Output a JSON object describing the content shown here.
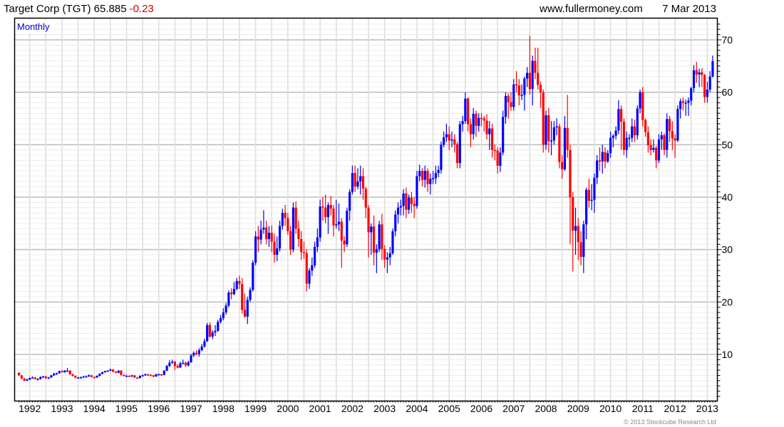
{
  "header": {
    "title": "Target Corp (TGT) 65.885",
    "change": "-0.23",
    "site": "www.fullermoney.com",
    "date": "7 Mar 2013"
  },
  "footer": {
    "copyright": "© 2013 Stockcube Research Ltd"
  },
  "colors": {
    "up": "#0000ff",
    "down": "#ff0000",
    "change": "#cc0000",
    "period": "#0000cc"
  },
  "chart_data": {
    "type": "candlestick",
    "title": "Target Corp (TGT) 65.885 -0.23",
    "interval": "Monthly",
    "start_month": "1991-09",
    "end_month": "2013-03",
    "ylim": [
      1.2,
      74
    ],
    "y_ticks": [
      "10",
      "20",
      "30",
      "40",
      "50",
      "60",
      "70"
    ],
    "x_ticks": [
      "1992",
      "1993",
      "1994",
      "1995",
      "1996",
      "1997",
      "1998",
      "1999",
      "2000",
      "2001",
      "2002",
      "2003",
      "2004",
      "2005",
      "2006",
      "2007",
      "2008",
      "2009",
      "2010",
      "2011",
      "2012",
      "2013"
    ],
    "grid": true,
    "candle_fields": [
      "open",
      "high",
      "low",
      "close"
    ],
    "candles": [
      [
        6.5,
        6.6,
        5.9,
        6.0
      ],
      [
        6.0,
        6.1,
        5.3,
        5.4
      ],
      [
        5.4,
        5.5,
        4.9,
        5.0
      ],
      [
        5.0,
        5.4,
        4.9,
        5.2
      ],
      [
        5.2,
        5.6,
        5.1,
        5.5
      ],
      [
        5.5,
        5.8,
        5.4,
        5.6
      ],
      [
        5.6,
        5.7,
        5.2,
        5.3
      ],
      [
        5.3,
        5.5,
        5.1,
        5.3
      ],
      [
        5.3,
        5.8,
        5.2,
        5.7
      ],
      [
        5.7,
        5.9,
        5.5,
        5.8
      ],
      [
        5.8,
        5.9,
        5.3,
        5.5
      ],
      [
        5.5,
        5.7,
        5.3,
        5.6
      ],
      [
        5.6,
        6.1,
        5.5,
        6.0
      ],
      [
        6.0,
        6.5,
        5.9,
        6.3
      ],
      [
        6.3,
        6.5,
        6.1,
        6.4
      ],
      [
        6.4,
        6.9,
        6.3,
        6.8
      ],
      [
        6.8,
        7.0,
        6.5,
        6.6
      ],
      [
        6.6,
        7.0,
        6.5,
        6.9
      ],
      [
        6.9,
        7.4,
        6.7,
        6.9
      ],
      [
        6.9,
        7.0,
        6.1,
        6.2
      ],
      [
        6.2,
        6.3,
        5.8,
        5.9
      ],
      [
        5.9,
        6.0,
        5.4,
        5.6
      ],
      [
        5.6,
        5.7,
        5.5,
        5.6
      ],
      [
        5.6,
        5.8,
        5.5,
        5.6
      ],
      [
        5.6,
        5.9,
        5.5,
        5.8
      ],
      [
        5.8,
        6.0,
        5.6,
        5.8
      ],
      [
        5.8,
        6.2,
        5.7,
        6.0
      ],
      [
        6.0,
        6.1,
        5.6,
        5.7
      ],
      [
        5.7,
        5.8,
        5.4,
        5.6
      ],
      [
        5.6,
        6.0,
        5.5,
        5.9
      ],
      [
        5.9,
        6.4,
        5.8,
        6.3
      ],
      [
        6.3,
        6.7,
        6.2,
        6.6
      ],
      [
        6.6,
        6.9,
        6.5,
        6.8
      ],
      [
        6.8,
        7.0,
        6.7,
        6.9
      ],
      [
        6.9,
        7.3,
        6.8,
        7.1
      ],
      [
        7.1,
        7.2,
        6.6,
        6.7
      ],
      [
        6.7,
        6.8,
        6.4,
        6.5
      ],
      [
        6.5,
        7.0,
        6.4,
        6.9
      ],
      [
        6.9,
        7.0,
        5.9,
        6.1
      ],
      [
        6.1,
        6.2,
        5.8,
        5.9
      ],
      [
        5.9,
        6.1,
        5.8,
        5.9
      ],
      [
        5.9,
        6.0,
        5.7,
        5.8
      ],
      [
        5.8,
        6.1,
        5.7,
        6.0
      ],
      [
        6.0,
        6.1,
        5.5,
        5.6
      ],
      [
        5.6,
        5.7,
        5.3,
        5.5
      ],
      [
        5.5,
        6.0,
        5.4,
        5.9
      ],
      [
        5.9,
        6.2,
        5.8,
        6.0
      ],
      [
        6.0,
        6.4,
        5.9,
        6.2
      ],
      [
        6.2,
        6.3,
        5.9,
        6.1
      ],
      [
        6.1,
        6.2,
        5.8,
        6.0
      ],
      [
        6.0,
        6.1,
        5.6,
        5.8
      ],
      [
        5.8,
        6.3,
        5.7,
        6.2
      ],
      [
        6.2,
        6.4,
        6.0,
        6.2
      ],
      [
        6.2,
        6.3,
        5.9,
        6.1
      ],
      [
        6.1,
        7.0,
        6.0,
        6.9
      ],
      [
        6.9,
        8.0,
        6.8,
        7.8
      ],
      [
        7.8,
        8.9,
        7.6,
        8.4
      ],
      [
        8.4,
        9.0,
        8.2,
        8.6
      ],
      [
        8.6,
        8.8,
        7.0,
        7.8
      ],
      [
        7.8,
        8.1,
        7.3,
        7.5
      ],
      [
        7.5,
        8.6,
        7.4,
        8.3
      ],
      [
        8.3,
        9.0,
        8.1,
        8.4
      ],
      [
        8.4,
        8.6,
        7.6,
        7.9
      ],
      [
        7.9,
        8.8,
        7.7,
        8.5
      ],
      [
        8.5,
        10.1,
        8.4,
        9.8
      ],
      [
        9.8,
        10.6,
        9.5,
        10.3
      ],
      [
        10.3,
        10.8,
        9.8,
        10.1
      ],
      [
        10.1,
        11.2,
        9.6,
        10.8
      ],
      [
        10.8,
        12.0,
        10.6,
        11.5
      ],
      [
        11.5,
        13.0,
        11.3,
        12.5
      ],
      [
        12.5,
        16.0,
        12.4,
        15.6
      ],
      [
        15.6,
        16.1,
        13.2,
        13.4
      ],
      [
        13.4,
        14.6,
        12.9,
        14.2
      ],
      [
        14.2,
        15.6,
        13.5,
        14.5
      ],
      [
        14.5,
        16.6,
        14.3,
        16.2
      ],
      [
        16.2,
        17.5,
        15.9,
        16.9
      ],
      [
        16.9,
        18.8,
        16.5,
        18.0
      ],
      [
        18.0,
        19.8,
        17.6,
        19.3
      ],
      [
        19.3,
        22.2,
        19.0,
        21.8
      ],
      [
        21.8,
        22.6,
        20.5,
        21.5
      ],
      [
        21.5,
        23.8,
        21.3,
        22.5
      ],
      [
        22.5,
        24.6,
        22.2,
        24.0
      ],
      [
        24.0,
        25.0,
        22.5,
        23.4
      ],
      [
        23.4,
        24.6,
        17.8,
        18.5
      ],
      [
        18.5,
        21.6,
        17.0,
        17.2
      ],
      [
        17.2,
        21.0,
        15.8,
        20.4
      ],
      [
        20.4,
        22.8,
        20.0,
        22.3
      ],
      [
        22.3,
        28.0,
        22.0,
        27.5
      ],
      [
        27.5,
        33.5,
        27.0,
        32.5
      ],
      [
        32.5,
        34.5,
        29.5,
        31.9
      ],
      [
        31.9,
        35.5,
        31.0,
        33.8
      ],
      [
        33.8,
        37.5,
        33.0,
        34.2
      ],
      [
        34.2,
        35.5,
        31.0,
        32.0
      ],
      [
        32.0,
        34.5,
        30.5,
        33.2
      ],
      [
        33.2,
        34.6,
        29.5,
        31.5
      ],
      [
        31.5,
        33.0,
        27.5,
        29.0
      ],
      [
        29.0,
        32.5,
        27.8,
        30.2
      ],
      [
        30.2,
        35.5,
        29.6,
        34.5
      ],
      [
        34.5,
        37.8,
        33.8,
        37.0
      ],
      [
        37.0,
        38.5,
        34.5,
        36.0
      ],
      [
        36.0,
        37.0,
        32.8,
        33.5
      ],
      [
        33.5,
        34.5,
        29.0,
        30.0
      ],
      [
        30.0,
        39.0,
        29.5,
        38.0
      ],
      [
        38.0,
        39.2,
        33.0,
        34.0
      ],
      [
        34.0,
        35.5,
        30.5,
        32.0
      ],
      [
        32.0,
        33.5,
        28.0,
        29.5
      ],
      [
        29.5,
        31.5,
        28.2,
        29.3
      ],
      [
        29.3,
        30.0,
        22.0,
        23.5
      ],
      [
        23.5,
        26.5,
        22.5,
        26.0
      ],
      [
        26.0,
        28.5,
        25.0,
        27.0
      ],
      [
        27.0,
        31.5,
        26.5,
        30.5
      ],
      [
        30.5,
        34.0,
        29.5,
        32.3
      ],
      [
        32.3,
        39.5,
        31.5,
        38.2
      ],
      [
        38.2,
        40.0,
        35.5,
        38.0
      ],
      [
        38.0,
        40.5,
        35.0,
        36.2
      ],
      [
        36.2,
        39.0,
        33.0,
        38.5
      ],
      [
        38.5,
        40.2,
        36.5,
        37.8
      ],
      [
        37.8,
        38.5,
        32.5,
        34.6
      ],
      [
        34.6,
        39.5,
        34.0,
        34.8
      ],
      [
        34.8,
        38.8,
        33.5,
        35.3
      ],
      [
        35.3,
        36.0,
        26.5,
        31.7
      ],
      [
        31.7,
        32.5,
        29.5,
        31.0
      ],
      [
        31.0,
        38.0,
        30.5,
        37.4
      ],
      [
        37.4,
        41.5,
        35.5,
        41.0
      ],
      [
        41.0,
        46.0,
        40.5,
        44.6
      ],
      [
        44.6,
        46.0,
        41.0,
        42.0
      ],
      [
        42.0,
        45.5,
        41.5,
        43.0
      ],
      [
        43.0,
        46.0,
        40.5,
        44.0
      ],
      [
        44.0,
        45.5,
        39.5,
        41.6
      ],
      [
        41.6,
        42.0,
        36.0,
        38.0
      ],
      [
        38.0,
        38.5,
        28.5,
        33.3
      ],
      [
        33.3,
        35.0,
        29.0,
        34.4
      ],
      [
        34.4,
        36.5,
        27.0,
        29.4
      ],
      [
        29.4,
        31.0,
        25.5,
        30.1
      ],
      [
        30.1,
        35.5,
        29.5,
        34.8
      ],
      [
        34.8,
        36.8,
        28.0,
        30.1
      ],
      [
        30.1,
        30.8,
        26.5,
        28.1
      ],
      [
        28.1,
        29.5,
        25.5,
        28.5
      ],
      [
        28.5,
        30.5,
        27.0,
        29.3
      ],
      [
        29.3,
        34.0,
        29.0,
        33.5
      ],
      [
        33.5,
        37.5,
        32.5,
        36.7
      ],
      [
        36.7,
        39.0,
        35.0,
        38.0
      ],
      [
        38.0,
        39.5,
        36.5,
        38.3
      ],
      [
        38.3,
        41.5,
        36.5,
        40.7
      ],
      [
        40.7,
        41.8,
        36.0,
        37.6
      ],
      [
        37.6,
        40.5,
        36.8,
        39.9
      ],
      [
        39.9,
        41.0,
        37.0,
        38.7
      ],
      [
        38.7,
        40.0,
        36.0,
        38.3
      ],
      [
        38.3,
        45.0,
        37.8,
        44.0
      ],
      [
        44.0,
        46.2,
        43.0,
        45.0
      ],
      [
        45.0,
        45.5,
        42.0,
        43.3
      ],
      [
        43.3,
        46.0,
        41.8,
        45.0
      ],
      [
        45.0,
        45.5,
        41.0,
        42.5
      ],
      [
        42.5,
        44.5,
        40.5,
        43.5
      ],
      [
        43.5,
        45.0,
        42.5,
        43.6
      ],
      [
        43.6,
        46.0,
        42.5,
        44.6
      ],
      [
        44.6,
        46.0,
        43.8,
        45.2
      ],
      [
        45.2,
        50.6,
        44.5,
        50.0
      ],
      [
        50.0,
        52.5,
        49.5,
        51.4
      ],
      [
        51.4,
        54.0,
        50.5,
        52.0
      ],
      [
        52.0,
        53.5,
        49.0,
        50.8
      ],
      [
        50.8,
        52.5,
        49.5,
        51.0
      ],
      [
        51.0,
        52.0,
        48.5,
        50.1
      ],
      [
        50.1,
        50.5,
        45.5,
        46.5
      ],
      [
        46.5,
        54.5,
        45.5,
        53.9
      ],
      [
        53.9,
        55.5,
        52.5,
        54.5
      ],
      [
        54.5,
        60.0,
        54.0,
        58.8
      ],
      [
        58.8,
        59.0,
        52.5,
        53.9
      ],
      [
        53.9,
        55.0,
        49.5,
        52.0
      ],
      [
        52.0,
        57.0,
        51.0,
        55.9
      ],
      [
        55.9,
        56.5,
        51.5,
        53.6
      ],
      [
        53.6,
        56.0,
        52.5,
        55.1
      ],
      [
        55.1,
        56.0,
        53.5,
        55.0
      ],
      [
        55.0,
        55.5,
        52.5,
        54.6
      ],
      [
        54.6,
        55.8,
        51.0,
        52.0
      ],
      [
        52.0,
        54.5,
        49.0,
        53.1
      ],
      [
        53.1,
        54.0,
        47.5,
        49.0
      ],
      [
        49.0,
        50.0,
        47.0,
        48.9
      ],
      [
        48.9,
        49.5,
        44.5,
        46.0
      ],
      [
        46.0,
        49.5,
        44.8,
        48.5
      ],
      [
        48.5,
        56.5,
        48.0,
        55.3
      ],
      [
        55.3,
        60.0,
        54.0,
        59.3
      ],
      [
        59.3,
        59.8,
        55.0,
        58.1
      ],
      [
        58.1,
        60.0,
        56.5,
        57.2
      ],
      [
        57.2,
        62.5,
        56.5,
        61.5
      ],
      [
        61.5,
        64.0,
        60.0,
        61.3
      ],
      [
        61.3,
        62.5,
        57.5,
        59.4
      ],
      [
        59.4,
        61.5,
        58.5,
        59.5
      ],
      [
        59.5,
        63.0,
        56.5,
        62.6
      ],
      [
        62.6,
        64.8,
        61.0,
        63.7
      ],
      [
        63.7,
        70.8,
        59.5,
        60.6
      ],
      [
        60.6,
        67.0,
        57.5,
        66.0
      ],
      [
        66.0,
        68.5,
        62.5,
        63.7
      ],
      [
        63.7,
        68.5,
        60.5,
        61.4
      ],
      [
        61.4,
        62.0,
        57.0,
        60.0
      ],
      [
        60.0,
        60.5,
        48.5,
        50.0
      ],
      [
        50.0,
        56.5,
        49.0,
        55.6
      ],
      [
        55.6,
        57.0,
        48.5,
        50.7
      ],
      [
        50.7,
        54.5,
        48.0,
        50.8
      ],
      [
        50.8,
        54.5,
        50.0,
        53.3
      ],
      [
        53.3,
        55.0,
        51.8,
        53.5
      ],
      [
        53.5,
        54.0,
        45.5,
        46.7
      ],
      [
        46.7,
        48.0,
        43.5,
        45.3
      ],
      [
        45.3,
        55.5,
        45.0,
        53.2
      ],
      [
        53.2,
        59.5,
        47.5,
        49.0
      ],
      [
        49.0,
        50.0,
        31.0,
        40.0
      ],
      [
        40.0,
        41.0,
        25.8,
        33.6
      ],
      [
        33.6,
        38.0,
        29.0,
        34.5
      ],
      [
        34.5,
        36.0,
        28.0,
        31.4
      ],
      [
        31.4,
        33.5,
        27.0,
        28.6
      ],
      [
        28.6,
        35.5,
        25.5,
        34.8
      ],
      [
        34.8,
        41.8,
        32.0,
        41.4
      ],
      [
        41.4,
        43.5,
        38.0,
        39.3
      ],
      [
        39.3,
        42.5,
        37.5,
        39.5
      ],
      [
        39.5,
        44.5,
        37.0,
        43.7
      ],
      [
        43.7,
        48.0,
        42.5,
        47.0
      ],
      [
        47.0,
        49.5,
        45.0,
        46.8
      ],
      [
        46.8,
        50.0,
        44.5,
        48.6
      ],
      [
        48.6,
        49.5,
        45.5,
        46.8
      ],
      [
        46.8,
        49.0,
        46.5,
        48.4
      ],
      [
        48.4,
        52.5,
        47.5,
        51.3
      ],
      [
        51.3,
        52.0,
        49.5,
        51.7
      ],
      [
        51.7,
        53.5,
        51.0,
        52.7
      ],
      [
        52.7,
        58.5,
        52.0,
        56.8
      ],
      [
        56.8,
        57.5,
        49.0,
        54.4
      ],
      [
        54.4,
        55.0,
        48.0,
        49.0
      ],
      [
        49.0,
        52.5,
        47.5,
        51.3
      ],
      [
        51.3,
        52.0,
        49.5,
        51.3
      ],
      [
        51.3,
        55.0,
        50.5,
        53.5
      ],
      [
        53.5,
        54.8,
        50.5,
        51.8
      ],
      [
        51.8,
        57.5,
        51.0,
        56.9
      ],
      [
        56.9,
        60.5,
        56.0,
        60.0
      ],
      [
        60.0,
        61.0,
        53.5,
        54.7
      ],
      [
        54.7,
        55.0,
        51.5,
        52.4
      ],
      [
        52.4,
        53.5,
        48.5,
        49.9
      ],
      [
        49.9,
        51.0,
        48.0,
        49.0
      ],
      [
        49.0,
        51.0,
        48.5,
        49.4
      ],
      [
        49.4,
        49.8,
        45.5,
        47.0
      ],
      [
        47.0,
        52.0,
        46.5,
        51.0
      ],
      [
        51.0,
        52.5,
        49.0,
        51.8
      ],
      [
        51.8,
        52.2,
        48.0,
        49.0
      ],
      [
        49.0,
        56.0,
        47.5,
        54.9
      ],
      [
        54.9,
        55.5,
        50.5,
        52.6
      ],
      [
        52.6,
        54.5,
        49.0,
        51.2
      ],
      [
        51.2,
        52.0,
        47.5,
        50.8
      ],
      [
        50.8,
        57.5,
        50.5,
        56.8
      ],
      [
        56.8,
        58.8,
        55.0,
        58.3
      ],
      [
        58.3,
        59.0,
        56.5,
        58.0
      ],
      [
        58.0,
        58.6,
        55.5,
        58.0
      ],
      [
        58.0,
        59.0,
        55.5,
        58.4
      ],
      [
        58.4,
        61.0,
        57.5,
        60.8
      ],
      [
        60.8,
        65.2,
        60.0,
        64.2
      ],
      [
        64.2,
        65.8,
        61.8,
        63.4
      ],
      [
        63.4,
        64.5,
        61.0,
        63.8
      ],
      [
        63.8,
        64.6,
        61.0,
        63.3
      ],
      [
        63.3,
        63.5,
        58.0,
        59.1
      ],
      [
        59.1,
        62.0,
        58.0,
        60.5
      ],
      [
        60.5,
        64.0,
        60.0,
        63.0
      ],
      [
        63.0,
        67.0,
        62.8,
        65.9
      ]
    ]
  }
}
